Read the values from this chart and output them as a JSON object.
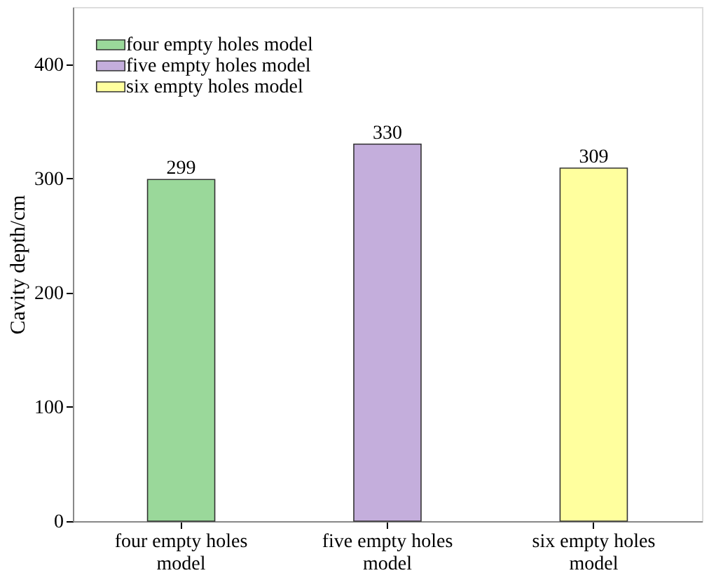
{
  "chart_data": {
    "type": "bar",
    "categories": [
      "four empty holes model",
      "five empty holes model",
      "six empty holes model"
    ],
    "series": [
      {
        "name": "four empty holes model",
        "color": "#9ad89a",
        "values": [
          299,
          null,
          null
        ]
      },
      {
        "name": "five empty holes model",
        "color": "#c4aedc",
        "values": [
          null,
          330,
          null
        ]
      },
      {
        "name": "six empty holes model",
        "color": "#ffff9e",
        "values": [
          null,
          null,
          309
        ]
      }
    ],
    "ylabel": "Cavity depth/cm",
    "ylim": [
      0,
      450
    ],
    "yticks": [
      0,
      100,
      200,
      300,
      400
    ],
    "data_labels": true,
    "legend": "top left",
    "grid": false
  }
}
